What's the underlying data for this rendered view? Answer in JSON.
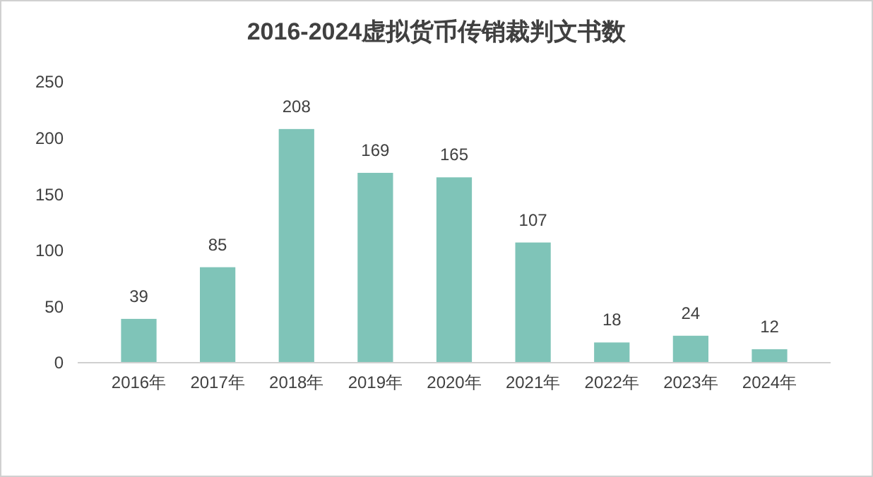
{
  "chart_data": {
    "type": "bar",
    "title": "2016-2024虚拟货币传销裁判文书数",
    "categories": [
      "2016年",
      "2017年",
      "2018年",
      "2019年",
      "2020年",
      "2021年",
      "2022年",
      "2023年",
      "2024年"
    ],
    "values": [
      39,
      85,
      208,
      169,
      165,
      107,
      18,
      24,
      12
    ],
    "color": "#7fc4b8",
    "ylim": [
      0,
      250
    ],
    "yticks": [
      0,
      50,
      100,
      150,
      200,
      250
    ],
    "grid": false,
    "data_labels": true
  }
}
